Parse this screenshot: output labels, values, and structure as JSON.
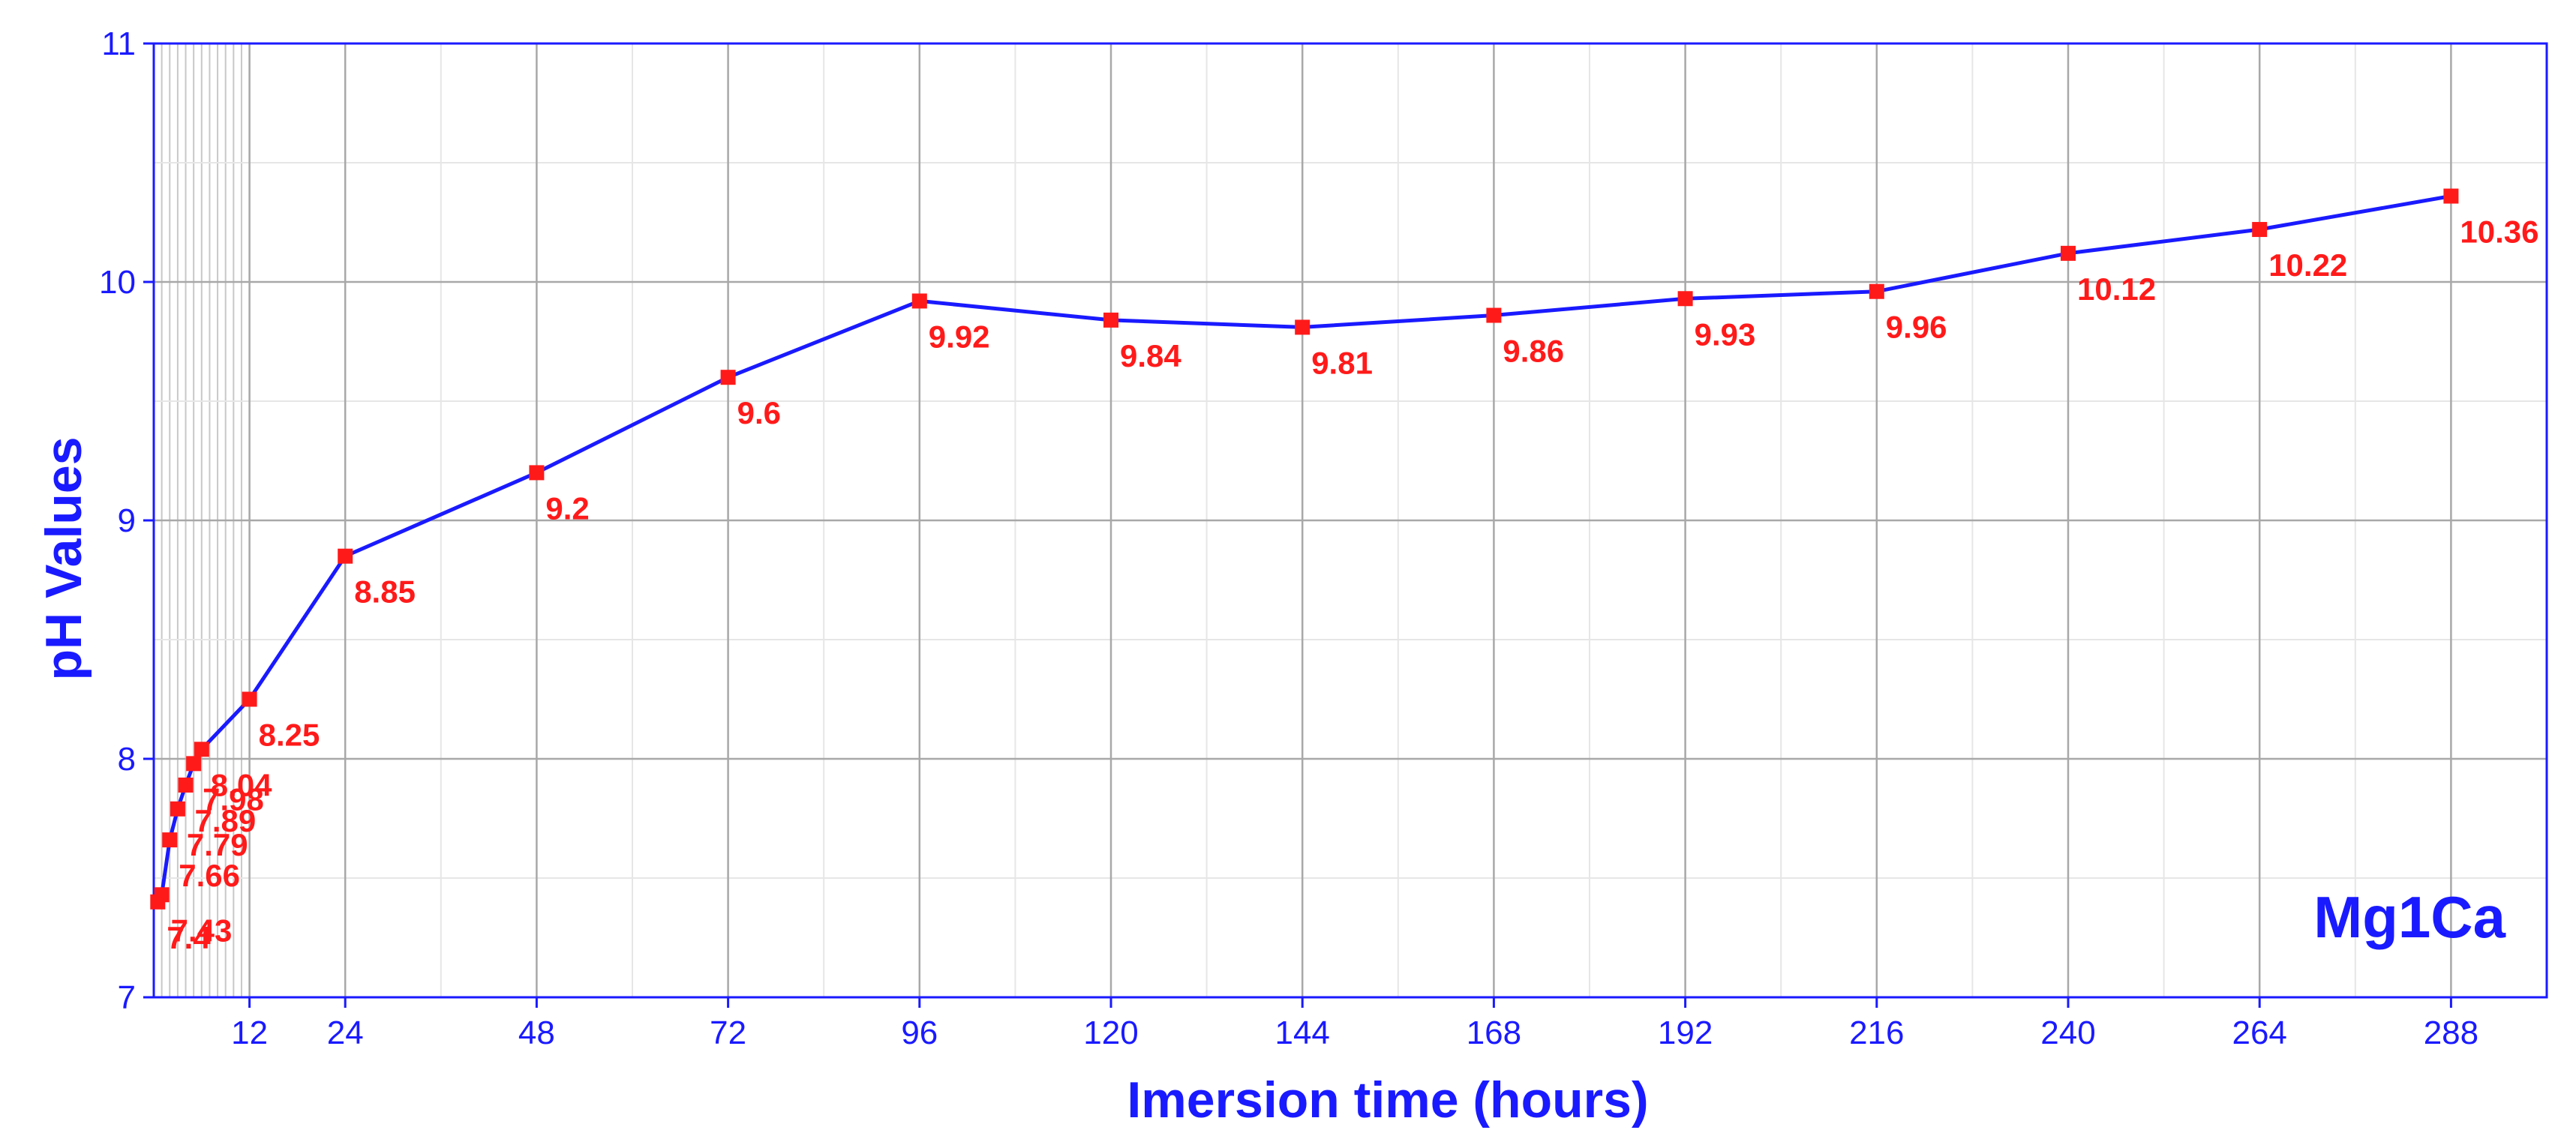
{
  "chart_data": {
    "type": "line",
    "title": "",
    "xlabel": "Imersion time (hours)",
    "ylabel": "pH Values",
    "annotation": "Mg1Ca",
    "xlim": [
      0,
      300
    ],
    "ylim": [
      7,
      11
    ],
    "x_ticks": [
      12,
      24,
      48,
      72,
      96,
      120,
      144,
      168,
      192,
      216,
      240,
      264,
      288
    ],
    "y_ticks": [
      7,
      8,
      9,
      10,
      11
    ],
    "grid": true,
    "series": [
      {
        "x": [
          0.5,
          1,
          2,
          3,
          4,
          5,
          6,
          12,
          24,
          48,
          72,
          96,
          120,
          144,
          168,
          192,
          216,
          240,
          264,
          288
        ],
        "y": [
          7.4,
          7.43,
          7.66,
          7.79,
          7.89,
          7.98,
          8.04,
          8.25,
          8.85,
          9.2,
          9.6,
          9.92,
          9.84,
          9.81,
          9.86,
          9.93,
          9.96,
          10.12,
          10.22,
          10.36
        ],
        "labels": [
          "7.4",
          "7.43",
          "7.66",
          "7.79",
          "7.89",
          "7.98",
          "8.04",
          "8.25",
          "8.85",
          "9.2",
          "9.6",
          "9.92",
          "9.84",
          "9.81",
          "9.86",
          "9.93",
          "9.96",
          "10.12",
          "10.22",
          "10.36"
        ]
      }
    ],
    "colors": {
      "line": "#1a1aff",
      "marker": "#ff1a1a",
      "text": "#1a1aff",
      "label": "#ff1a1a"
    }
  }
}
